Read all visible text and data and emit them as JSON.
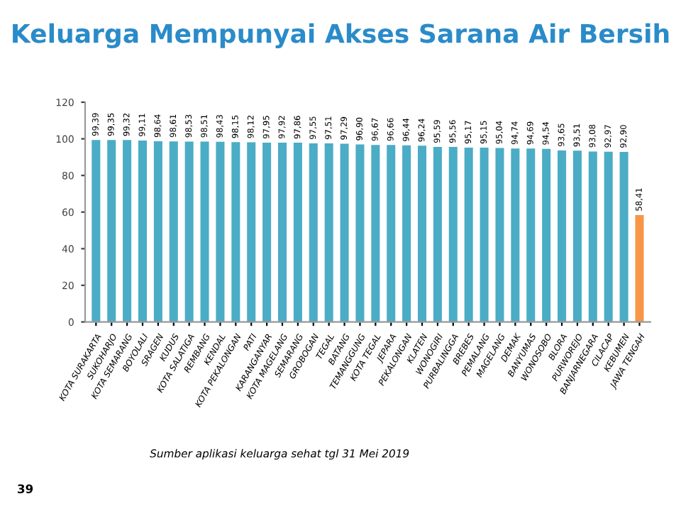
{
  "chart_data": {
    "type": "bar",
    "title": "Keluarga Mempunyai Akses Sarana Air Bersih",
    "categories": [
      "KOTA SURAKARTA",
      "SUKOHARJO",
      "KOTA SEMARANG",
      "BOYOLALI",
      "SRAGEN",
      "KUDUS",
      "KOTA SALATIGA",
      "REMBANG",
      "KENDAL",
      "KOTA PEKALONGAN",
      "PATI",
      "KARANGANYAR",
      "KOTA MAGELANG",
      "SEMARANG",
      "GROBOGAN",
      "TEGAL",
      "BATANG",
      "TEMANGGUNG",
      "KOTA TEGAL",
      "JEPARA",
      "PEKALONGAN",
      "KLATEN",
      "WONOGIRI",
      "PURBALINGGA",
      "BREBES",
      "PEMALANG",
      "MAGELANG",
      "DEMAK",
      "BANYUMAS",
      "WONOSOBO",
      "BLORA",
      "PURWOREJO",
      "BANJARNEGARA",
      "CILACAP",
      "KEBUMEN",
      "JAWA TENGAH"
    ],
    "values": [
      99.39,
      99.35,
      99.32,
      99.11,
      98.64,
      98.61,
      98.53,
      98.51,
      98.43,
      98.15,
      98.12,
      97.95,
      97.92,
      97.86,
      97.55,
      97.51,
      97.29,
      96.9,
      96.67,
      96.66,
      96.44,
      96.24,
      95.59,
      95.56,
      95.17,
      95.15,
      95.04,
      94.74,
      94.69,
      94.54,
      93.65,
      93.51,
      93.08,
      92.97,
      92.9,
      58.41
    ],
    "value_labels": [
      "99,39",
      "99,35",
      "99,32",
      "99,11",
      "98,64",
      "98,61",
      "98,53",
      "98,51",
      "98,43",
      "98,15",
      "98,12",
      "97,95",
      "97,92",
      "97,86",
      "97,55",
      "97,51",
      "97,29",
      "96,90",
      "96,67",
      "96,66",
      "96,44",
      "96,24",
      "95,59",
      "95,56",
      "95,17",
      "95,15",
      "95,04",
      "94,74",
      "94,69",
      "94,54",
      "93,65",
      "93,51",
      "93,08",
      "92,97",
      "92,90",
      "58,41"
    ],
    "colors": [
      "#4bacc6",
      "#4bacc6",
      "#4bacc6",
      "#4bacc6",
      "#4bacc6",
      "#4bacc6",
      "#4bacc6",
      "#4bacc6",
      "#4bacc6",
      "#4bacc6",
      "#4bacc6",
      "#4bacc6",
      "#4bacc6",
      "#4bacc6",
      "#4bacc6",
      "#4bacc6",
      "#4bacc6",
      "#4bacc6",
      "#4bacc6",
      "#4bacc6",
      "#4bacc6",
      "#4bacc6",
      "#4bacc6",
      "#4bacc6",
      "#4bacc6",
      "#4bacc6",
      "#4bacc6",
      "#4bacc6",
      "#4bacc6",
      "#4bacc6",
      "#4bacc6",
      "#4bacc6",
      "#4bacc6",
      "#4bacc6",
      "#4bacc6",
      "#f79646"
    ],
    "ylim": [
      0,
      120
    ],
    "yticks": [
      0,
      20,
      40,
      60,
      80,
      100,
      120
    ],
    "grid": false,
    "legend": false,
    "annotations": [
      "Sumber aplikasi keluarga sehat tgl 31 Mei 2019",
      "39"
    ]
  }
}
